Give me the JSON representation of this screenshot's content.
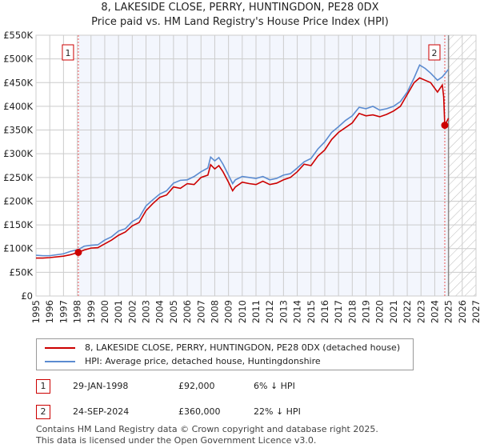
{
  "title": "8, LAKESIDE CLOSE, PERRY, HUNTINGDON, PE28 0DX",
  "subtitle": "Price paid vs. HM Land Registry's House Price Index (HPI)",
  "chart_data": {
    "type": "line",
    "ylim": [
      0,
      550000
    ],
    "xlim": [
      1995,
      2027
    ],
    "yticks": [
      0,
      50000,
      100000,
      150000,
      200000,
      250000,
      300000,
      350000,
      400000,
      450000,
      500000,
      550000
    ],
    "ytick_labels": [
      "£0",
      "£50K",
      "£100K",
      "£150K",
      "£200K",
      "£250K",
      "£300K",
      "£350K",
      "£400K",
      "£450K",
      "£500K",
      "£550K"
    ],
    "xticks": [
      1995,
      1996,
      1997,
      1998,
      1999,
      2000,
      2001,
      2002,
      2003,
      2004,
      2005,
      2006,
      2007,
      2008,
      2009,
      2010,
      2011,
      2012,
      2013,
      2014,
      2015,
      2016,
      2017,
      2018,
      2019,
      2020,
      2021,
      2022,
      2023,
      2024,
      2025,
      2026,
      2027
    ],
    "grid": true,
    "series": [
      {
        "name": "8, LAKESIDE CLOSE, PERRY, HUNTINGDON, PE28 0DX (detached house)",
        "color": "#cc0000",
        "x": [
          1995,
          1995.5,
          1996,
          1997,
          1997.5,
          1998.08,
          1998.5,
          1999,
          1999.5,
          2000,
          2000.5,
          2001,
          2001.5,
          2002,
          2002.5,
          2003,
          2003.5,
          2004,
          2004.5,
          2005,
          2005.5,
          2006,
          2006.5,
          2007,
          2007.5,
          2007.7,
          2008,
          2008.3,
          2008.6,
          2009,
          2009.3,
          2009.5,
          2010,
          2010.5,
          2011,
          2011.5,
          2012,
          2012.5,
          2013,
          2013.5,
          2014,
          2014.5,
          2015,
          2015.5,
          2016,
          2016.5,
          2017,
          2017.5,
          2018,
          2018.5,
          2019,
          2019.5,
          2020,
          2020.5,
          2021,
          2021.5,
          2022,
          2022.5,
          2022.9,
          2023.3,
          2023.7,
          2024.2,
          2024.55,
          2024.65,
          2024.73,
          2025
        ],
        "y": [
          80000,
          80000,
          81000,
          84000,
          87000,
          92000,
          97000,
          101000,
          102000,
          110000,
          118000,
          128000,
          135000,
          148000,
          155000,
          180000,
          195000,
          208000,
          213000,
          230000,
          227000,
          237000,
          235000,
          250000,
          255000,
          277000,
          268000,
          275000,
          262000,
          240000,
          222000,
          230000,
          240000,
          237000,
          235000,
          242000,
          235000,
          238000,
          245000,
          250000,
          262000,
          278000,
          275000,
          295000,
          308000,
          330000,
          345000,
          355000,
          365000,
          385000,
          380000,
          382000,
          378000,
          383000,
          390000,
          400000,
          425000,
          450000,
          460000,
          455000,
          450000,
          430000,
          445000,
          420000,
          360000,
          375000
        ]
      },
      {
        "name": "HPI: Average price, detached house, Huntingdonshire",
        "color": "#5b8bd0",
        "x": [
          1995,
          1995.5,
          1996,
          1997,
          1997.5,
          1998.08,
          1998.5,
          1999,
          1999.5,
          2000,
          2000.5,
          2001,
          2001.5,
          2002,
          2002.5,
          2003,
          2003.5,
          2004,
          2004.5,
          2005,
          2005.5,
          2006,
          2006.5,
          2007,
          2007.5,
          2007.7,
          2008,
          2008.3,
          2008.6,
          2009,
          2009.3,
          2009.5,
          2010,
          2010.5,
          2011,
          2011.5,
          2012,
          2012.5,
          2013,
          2013.5,
          2014,
          2014.5,
          2015,
          2015.5,
          2016,
          2016.5,
          2017,
          2017.5,
          2018,
          2018.5,
          2019,
          2019.5,
          2020,
          2020.5,
          2021,
          2021.5,
          2022,
          2022.5,
          2022.9,
          2023.3,
          2023.7,
          2024.2,
          2024.55,
          2025
        ],
        "y": [
          86000,
          85000,
          85000,
          89000,
          94000,
          98000,
          105000,
          107000,
          108000,
          118000,
          125000,
          137000,
          142000,
          157000,
          165000,
          190000,
          203000,
          215000,
          222000,
          238000,
          244000,
          245000,
          252000,
          262000,
          270000,
          293000,
          285000,
          292000,
          278000,
          255000,
          237000,
          245000,
          252000,
          250000,
          248000,
          252000,
          245000,
          248000,
          255000,
          258000,
          270000,
          283000,
          290000,
          310000,
          325000,
          345000,
          357000,
          370000,
          380000,
          398000,
          395000,
          400000,
          392000,
          395000,
          400000,
          410000,
          430000,
          460000,
          487000,
          480000,
          470000,
          455000,
          462000,
          478000
        ]
      }
    ],
    "sales": [
      {
        "label": "1",
        "x": 1998.08,
        "y": 92000
      },
      {
        "label": "2",
        "x": 2024.73,
        "y": 360000
      }
    ],
    "future_start": 2025
  },
  "legend": [
    "8, LAKESIDE CLOSE, PERRY, HUNTINGDON, PE28 0DX (detached house)",
    "HPI: Average price, detached house, Huntingdonshire"
  ],
  "table": [
    {
      "n": "1",
      "date": "29-JAN-1998",
      "price": "£92,000",
      "hpi": "6% ↓ HPI"
    },
    {
      "n": "2",
      "date": "24-SEP-2024",
      "price": "£360,000",
      "hpi": "22% ↓ HPI"
    }
  ],
  "footer": [
    "Contains HM Land Registry data © Crown copyright and database right 2025.",
    "This data is licensed under the Open Government Licence v3.0."
  ]
}
